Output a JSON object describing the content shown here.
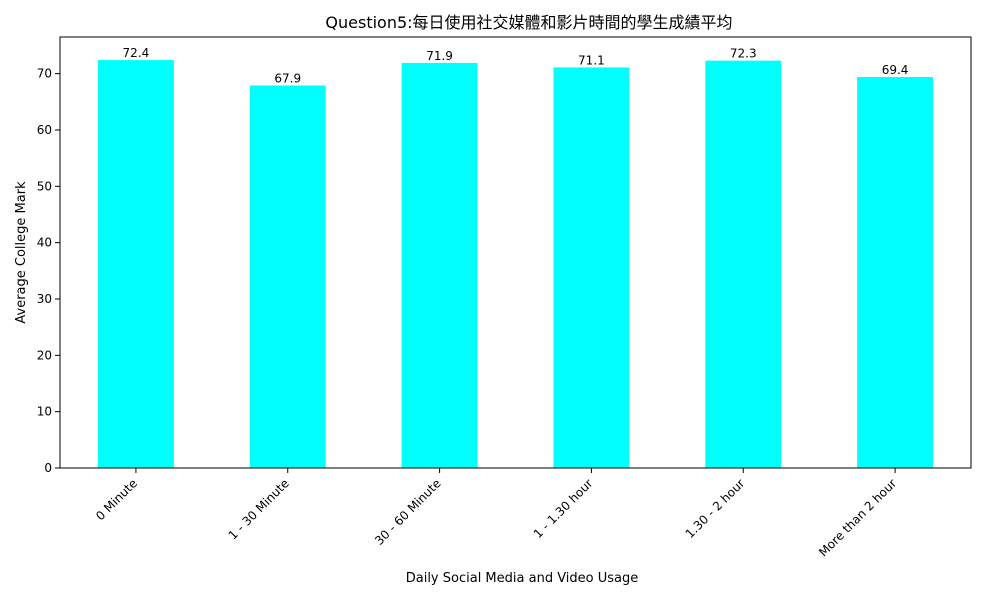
{
  "chart_data": {
    "type": "bar",
    "title": "Question5:每日使用社交媒體和影片時間的學生成績平均",
    "xlabel": "Daily Social Media and Video Usage",
    "ylabel": "Average College Mark",
    "categories": [
      "0 Minute",
      "1 - 30 Minute",
      "30 - 60 Minute",
      "1 - 1.30 hour",
      "1.30 - 2 hour",
      "More than 2 hour"
    ],
    "values": [
      72.4,
      67.9,
      71.9,
      71.1,
      72.3,
      69.4
    ],
    "value_labels": [
      "72.4",
      "67.9",
      "71.9",
      "71.1",
      "72.3",
      "69.4"
    ],
    "ylim": [
      0,
      76.5
    ],
    "yticks": [
      0,
      10,
      20,
      30,
      40,
      50,
      60,
      70
    ],
    "bar_color": "#00ffff",
    "grid": false,
    "legend": "none"
  }
}
